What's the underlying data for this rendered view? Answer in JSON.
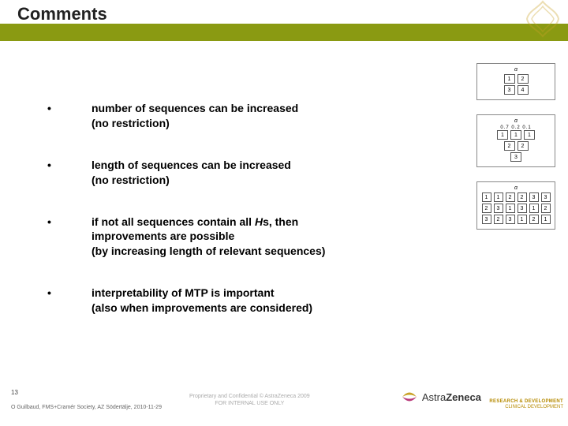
{
  "title": "Comments",
  "bullets": [
    {
      "dot": "•",
      "text": "number of sequences can be increased\n(no restriction)"
    },
    {
      "dot": "•",
      "text": "length of sequences can be increased\n(no restriction)"
    },
    {
      "dot": "•",
      "text_html": "if not all sequences contain all <span class=\"italic\">H</span>s, then\nimprovements are possible\n(by increasing length of relevant sequences)"
    },
    {
      "dot": "•",
      "text": "interpretability of MTP is important\n(also when improvements are considered)"
    }
  ],
  "diagrams": [
    {
      "alpha": "α",
      "rows": [
        [
          "1",
          "2"
        ],
        [
          "3",
          "4"
        ]
      ]
    },
    {
      "alpha": "α",
      "weights": [
        "0.7",
        "0.2",
        "0.1"
      ],
      "rows": [
        [
          "1",
          "1",
          "1"
        ],
        [
          "2",
          "2"
        ],
        [
          "3"
        ]
      ]
    },
    {
      "alpha": "α",
      "rows": [
        [
          "1",
          "1",
          "2",
          "2",
          "3",
          "3"
        ],
        [
          "2",
          "3",
          "1",
          "3",
          "1",
          "2"
        ],
        [
          "3",
          "2",
          "3",
          "1",
          "2",
          "1"
        ]
      ]
    }
  ],
  "page_num": "13",
  "footer_left": "O Guilbaud, FMS+Cramér Society, AZ Södertälje, 2010-11-29",
  "footer_mid_line1": "Proprietary and Confidential © AstraZeneca 2009",
  "footer_mid_line2": "FOR INTERNAL USE ONLY",
  "logo_text_a": "Astra",
  "logo_text_b": "Zeneca",
  "rd_line1": "RESEARCH & DEVELOPMENT",
  "rd_line2": "CLINICAL DEVELOPMENT",
  "colors": {
    "bar": "#8a9a12",
    "logo_gold": "#c9a227",
    "logo_magenta": "#b83a7a"
  }
}
